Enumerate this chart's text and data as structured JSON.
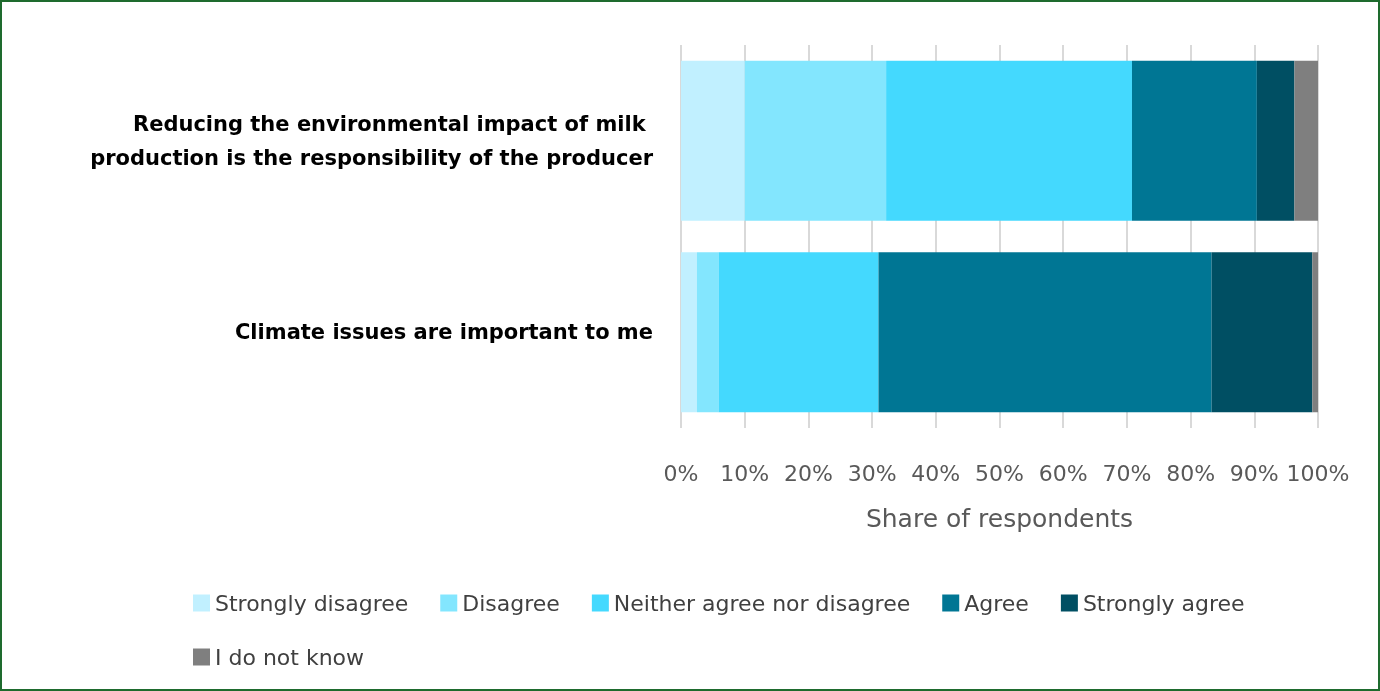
{
  "chart_data": {
    "type": "bar",
    "orientation": "horizontal",
    "stacked": true,
    "categories": [
      "Reducing the environmental impact of milk production is the responsibility of the producer",
      "Climate issues are important to me"
    ],
    "series": [
      {
        "name": "Strongly disagree",
        "color": "#c1f0ff",
        "values": [
          10.0,
          2.5
        ]
      },
      {
        "name": "Disagree",
        "color": "#83e6fe",
        "values": [
          22.2,
          3.4
        ]
      },
      {
        "name": "Neither agree nor disagree",
        "color": "#44d9fe",
        "values": [
          38.6,
          25.1
        ]
      },
      {
        "name": "Agree",
        "color": "#007694",
        "values": [
          19.6,
          52.3
        ]
      },
      {
        "name": "Strongly agree",
        "color": "#004f63",
        "values": [
          5.9,
          15.8
        ]
      },
      {
        "name": "I do not know",
        "color": "#7f7f7f",
        "values": [
          3.7,
          0.9
        ]
      }
    ],
    "xlabel": "Share of respondents",
    "xlim": [
      0,
      100
    ],
    "xticks": [
      {
        "value": 0,
        "label": "0%"
      },
      {
        "value": 10,
        "label": "10%"
      },
      {
        "value": 20,
        "label": "20%"
      },
      {
        "value": 30,
        "label": "30%"
      },
      {
        "value": 40,
        "label": "40%"
      },
      {
        "value": 50,
        "label": "50%"
      },
      {
        "value": 60,
        "label": "60%"
      },
      {
        "value": 70,
        "label": "70%"
      },
      {
        "value": 80,
        "label": "80%"
      },
      {
        "value": 90,
        "label": "90%"
      },
      {
        "value": 100,
        "label": "100%"
      }
    ],
    "grid": "x",
    "legend": "bottom"
  }
}
